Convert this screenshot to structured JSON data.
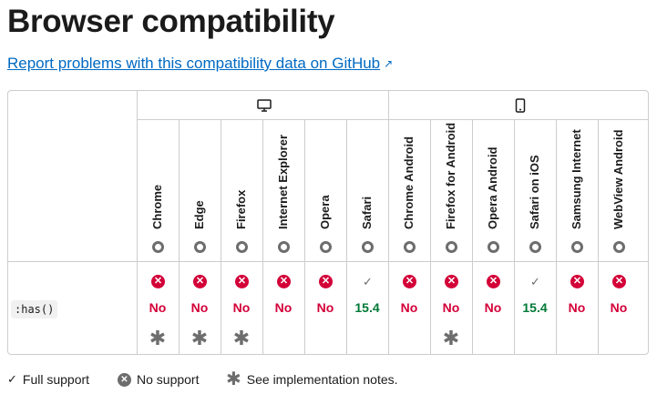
{
  "title": "Browser compatibility",
  "report_link": "Report problems with this compatibility data on GitHub",
  "groups": [
    "desktop-icon",
    "mobile-icon"
  ],
  "browsers": [
    "Chrome",
    "Edge",
    "Firefox",
    "Internet Explorer",
    "Opera",
    "Safari",
    "Chrome Android",
    "Firefox for Android",
    "Opera Android",
    "Safari on iOS",
    "Samsung Internet",
    "WebView Android"
  ],
  "feature": ":has()",
  "support": [
    {
      "value": "No",
      "supported": false,
      "note": true
    },
    {
      "value": "No",
      "supported": false,
      "note": true
    },
    {
      "value": "No",
      "supported": false,
      "note": true
    },
    {
      "value": "No",
      "supported": false,
      "note": false
    },
    {
      "value": "No",
      "supported": false,
      "note": false
    },
    {
      "value": "15.4",
      "supported": true,
      "note": false
    },
    {
      "value": "No",
      "supported": false,
      "note": false
    },
    {
      "value": "No",
      "supported": false,
      "note": true
    },
    {
      "value": "No",
      "supported": false,
      "note": false
    },
    {
      "value": "15.4",
      "supported": true,
      "note": false
    },
    {
      "value": "No",
      "supported": false,
      "note": false
    },
    {
      "value": "No",
      "supported": false,
      "note": false
    }
  ],
  "legend": {
    "full": "Full support",
    "none": "No support",
    "notes": "See implementation notes."
  },
  "colors": {
    "no": "#d30038",
    "yes": "#007936",
    "link": "#0069c2"
  }
}
